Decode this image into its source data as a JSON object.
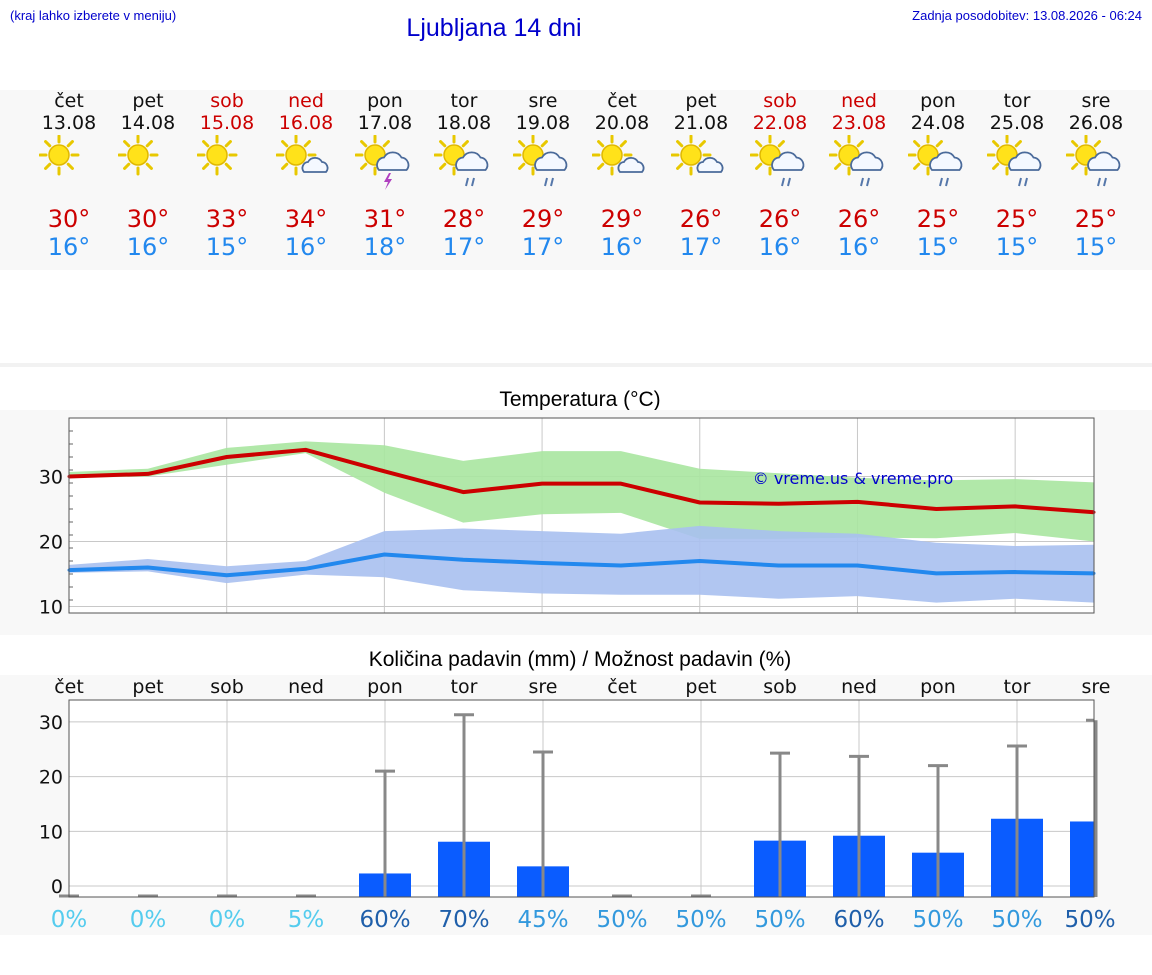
{
  "header": {
    "menu_hint": "(kraj lahko izberete v meniju)",
    "title": "Ljubljana 14 dni",
    "last_update": "Zadnja posodobitev: 13.08.2026 - 06:24"
  },
  "colors": {
    "link_blue": "#0000cc",
    "weekend_red": "#cc0000",
    "max_temp": "#cc0000",
    "min_temp": "#2288ee",
    "max_band": "#a8e6a0",
    "min_band": "#a8c0f0",
    "precip_bar": "#0a5cff"
  },
  "forecast": {
    "days": [
      {
        "dow": "čet",
        "date": "13.08",
        "weekend": false,
        "icon": "sun-icon",
        "max": "30°",
        "min": "16°"
      },
      {
        "dow": "pet",
        "date": "14.08",
        "weekend": false,
        "icon": "sun-icon",
        "max": "30°",
        "min": "16°"
      },
      {
        "dow": "sob",
        "date": "15.08",
        "weekend": true,
        "icon": "sun-icon",
        "max": "33°",
        "min": "15°"
      },
      {
        "dow": "ned",
        "date": "16.08",
        "weekend": true,
        "icon": "sun-cloud-icon",
        "max": "34°",
        "min": "16°"
      },
      {
        "dow": "pon",
        "date": "17.08",
        "weekend": false,
        "icon": "sun-thunder-icon",
        "max": "31°",
        "min": "18°"
      },
      {
        "dow": "tor",
        "date": "18.08",
        "weekend": false,
        "icon": "sun-rain-icon",
        "max": "28°",
        "min": "17°"
      },
      {
        "dow": "sre",
        "date": "19.08",
        "weekend": false,
        "icon": "sun-rain-icon",
        "max": "29°",
        "min": "17°"
      },
      {
        "dow": "čet",
        "date": "20.08",
        "weekend": false,
        "icon": "sun-cloud-icon",
        "max": "29°",
        "min": "16°"
      },
      {
        "dow": "pet",
        "date": "21.08",
        "weekend": false,
        "icon": "sun-cloud-icon",
        "max": "26°",
        "min": "17°"
      },
      {
        "dow": "sob",
        "date": "22.08",
        "weekend": true,
        "icon": "sun-rain-icon",
        "max": "26°",
        "min": "16°"
      },
      {
        "dow": "ned",
        "date": "23.08",
        "weekend": true,
        "icon": "sun-rain-icon",
        "max": "26°",
        "min": "16°"
      },
      {
        "dow": "pon",
        "date": "24.08",
        "weekend": false,
        "icon": "sun-rain-icon",
        "max": "25°",
        "min": "15°"
      },
      {
        "dow": "tor",
        "date": "25.08",
        "weekend": false,
        "icon": "sun-rain-icon",
        "max": "25°",
        "min": "15°"
      },
      {
        "dow": "sre",
        "date": "26.08",
        "weekend": false,
        "icon": "sun-rain-icon",
        "max": "25°",
        "min": "15°"
      }
    ]
  },
  "chart_data": [
    {
      "type": "line",
      "title": "Temperatura (°C)",
      "watermark": "© vreme.us & vreme.pro",
      "x": [
        "13.08",
        "14.08",
        "15.08",
        "16.08",
        "17.08",
        "18.08",
        "19.08",
        "20.08",
        "21.08",
        "22.08",
        "23.08",
        "24.08",
        "25.08",
        "26.08"
      ],
      "ylim": [
        9,
        39
      ],
      "yticks": [
        10,
        20,
        30
      ],
      "grid": true,
      "series": [
        {
          "key": "max",
          "values": [
            30.0,
            30.4,
            33.0,
            34.1,
            30.8,
            27.6,
            28.9,
            28.9,
            26.0,
            25.8,
            26.1,
            25.0,
            25.4,
            24.5
          ],
          "band_low": [
            29.8,
            30.0,
            31.8,
            33.6,
            27.5,
            22.9,
            24.2,
            24.4,
            20.4,
            20.4,
            20.6,
            20.5,
            21.3,
            20.0
          ],
          "band_high": [
            30.7,
            31.2,
            34.4,
            35.4,
            34.8,
            32.4,
            33.9,
            33.9,
            31.2,
            30.5,
            29.8,
            29.4,
            29.6,
            29.1
          ]
        },
        {
          "key": "min",
          "values": [
            15.6,
            16.0,
            14.8,
            15.8,
            18.0,
            17.2,
            16.7,
            16.3,
            17.0,
            16.3,
            16.3,
            15.1,
            15.3,
            15.1
          ],
          "band_low": [
            15.2,
            15.4,
            13.6,
            14.9,
            14.5,
            12.5,
            12.0,
            11.8,
            11.8,
            11.2,
            11.6,
            10.6,
            11.2,
            10.6
          ],
          "band_high": [
            16.4,
            17.3,
            16.2,
            17.0,
            21.6,
            22.0,
            21.6,
            21.2,
            22.4,
            21.6,
            21.2,
            19.8,
            19.3,
            19.5
          ]
        }
      ]
    },
    {
      "type": "bar",
      "title": "Količina padavin (mm) / Možnost padavin (%)",
      "categories": [
        "čet",
        "pet",
        "sob",
        "ned",
        "pon",
        "tor",
        "sre",
        "čet",
        "pet",
        "sob",
        "ned",
        "pon",
        "tor",
        "sre"
      ],
      "values": [
        0,
        0,
        0,
        0,
        2.3,
        8.1,
        3.6,
        0,
        0,
        8.3,
        9.2,
        6.1,
        12.3,
        11.8
      ],
      "error_high": [
        0,
        0,
        0,
        0,
        21.0,
        31.3,
        24.5,
        0,
        0,
        24.3,
        23.7,
        22.0,
        25.6,
        30.3
      ],
      "chance": [
        "0%",
        "0%",
        "0%",
        "5%",
        "60%",
        "70%",
        "45%",
        "50%",
        "50%",
        "50%",
        "60%",
        "50%",
        "50%",
        "50%"
      ],
      "chance_colors": [
        "#55ccee",
        "#55ccee",
        "#55ccee",
        "#55ccee",
        "#1f5faa",
        "#1f5faa",
        "#3399dd",
        "#3399dd",
        "#3399dd",
        "#3399dd",
        "#1f5faa",
        "#3399dd",
        "#3399dd",
        "#1f5faa"
      ],
      "ylim": [
        -2,
        34
      ],
      "yticks": [
        0,
        10,
        20,
        30
      ],
      "grid": true
    }
  ]
}
